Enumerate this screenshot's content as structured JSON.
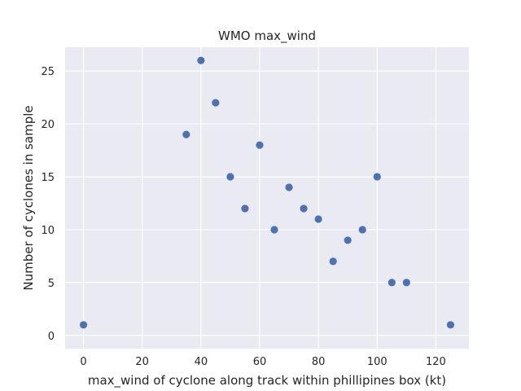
{
  "chart_data": {
    "type": "scatter",
    "title": "WMO max_wind",
    "xlabel": "max_wind of cyclone along track within phillipines box (kt)",
    "ylabel": "Number of cyclones in sample",
    "xlim": [
      -6.25,
      131.25
    ],
    "ylim": [
      -1.25,
      27.25
    ],
    "xticks": [
      0,
      20,
      40,
      60,
      80,
      100,
      120
    ],
    "yticks": [
      0,
      5,
      10,
      15,
      20,
      25
    ],
    "grid": true,
    "marker_color": "#4c72b0",
    "points": [
      {
        "x": 0,
        "y": 1
      },
      {
        "x": 35,
        "y": 19
      },
      {
        "x": 40,
        "y": 26
      },
      {
        "x": 45,
        "y": 22
      },
      {
        "x": 50,
        "y": 15
      },
      {
        "x": 55,
        "y": 12
      },
      {
        "x": 60,
        "y": 18
      },
      {
        "x": 65,
        "y": 10
      },
      {
        "x": 70,
        "y": 14
      },
      {
        "x": 75,
        "y": 12
      },
      {
        "x": 80,
        "y": 11
      },
      {
        "x": 85,
        "y": 7
      },
      {
        "x": 90,
        "y": 9
      },
      {
        "x": 95,
        "y": 10
      },
      {
        "x": 100,
        "y": 15
      },
      {
        "x": 105,
        "y": 5
      },
      {
        "x": 110,
        "y": 5
      },
      {
        "x": 125,
        "y": 1
      }
    ]
  }
}
